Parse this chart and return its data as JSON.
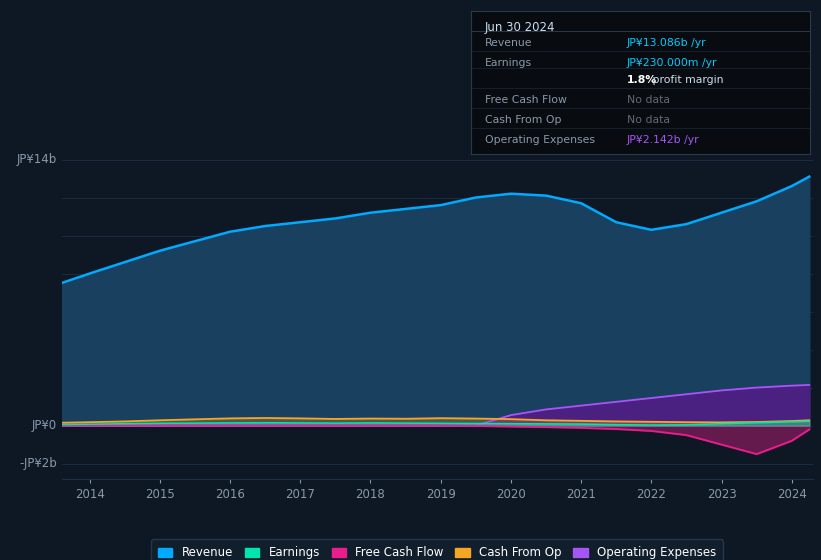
{
  "background_color": "#0e1825",
  "plot_bg_color": "#0e1825",
  "ylim": [
    -2800000000.0,
    16500000000.0
  ],
  "years": [
    2013.6,
    2014.0,
    2014.5,
    2015.0,
    2015.5,
    2016.0,
    2016.5,
    2017.0,
    2017.5,
    2018.0,
    2018.5,
    2019.0,
    2019.5,
    2020.0,
    2020.5,
    2021.0,
    2021.5,
    2022.0,
    2022.5,
    2023.0,
    2023.5,
    2024.0,
    2024.25
  ],
  "revenue": [
    7500000000.0,
    8000000000.0,
    8600000000.0,
    9200000000.0,
    9700000000.0,
    10200000000.0,
    10500000000.0,
    10700000000.0,
    10900000000.0,
    11200000000.0,
    11400000000.0,
    11600000000.0,
    12000000000.0,
    12200000000.0,
    12100000000.0,
    11700000000.0,
    10700000000.0,
    10300000000.0,
    10600000000.0,
    11200000000.0,
    11800000000.0,
    12600000000.0,
    13100000000.0
  ],
  "earnings": [
    50000000.0,
    70000000.0,
    100000000.0,
    120000000.0,
    130000000.0,
    140000000.0,
    150000000.0,
    140000000.0,
    130000000.0,
    140000000.0,
    130000000.0,
    120000000.0,
    110000000.0,
    100000000.0,
    90000000.0,
    80000000.0,
    50000000.0,
    30000000.0,
    40000000.0,
    100000000.0,
    150000000.0,
    200000000.0,
    230000000.0
  ],
  "free_cash_flow": [
    0.0,
    0.0,
    0.0,
    0.0,
    0.0,
    0.0,
    0.0,
    0.0,
    0.0,
    0.0,
    0.0,
    0.0,
    -20000000.0,
    -50000000.0,
    -80000000.0,
    -120000000.0,
    -180000000.0,
    -280000000.0,
    -500000000.0,
    -1000000000.0,
    -1500000000.0,
    -800000000.0,
    -200000000.0
  ],
  "cash_from_op": [
    150000000.0,
    180000000.0,
    220000000.0,
    280000000.0,
    330000000.0,
    380000000.0,
    400000000.0,
    380000000.0,
    350000000.0,
    370000000.0,
    360000000.0,
    390000000.0,
    370000000.0,
    340000000.0,
    280000000.0,
    250000000.0,
    220000000.0,
    200000000.0,
    180000000.0,
    170000000.0,
    190000000.0,
    240000000.0,
    280000000.0
  ],
  "op_expenses": [
    0.0,
    0.0,
    0.0,
    0.0,
    0.0,
    0.0,
    0.0,
    0.0,
    0.0,
    0.0,
    0.0,
    0.0,
    0.0,
    550000000.0,
    850000000.0,
    1050000000.0,
    1250000000.0,
    1450000000.0,
    1650000000.0,
    1850000000.0,
    2000000000.0,
    2100000000.0,
    2140000000.0
  ],
  "revenue_color": "#00aaff",
  "revenue_fill": "#1a4060",
  "earnings_color": "#00e5b0",
  "free_cash_flow_color": "#e91e8c",
  "cash_from_op_color": "#f5a623",
  "op_expenses_color": "#a855f7",
  "op_expenses_fill": "#4a2080",
  "grid_color": "#1e3048",
  "tick_label_color": "#8899aa",
  "xticks": [
    2014,
    2015,
    2016,
    2017,
    2018,
    2019,
    2020,
    2021,
    2022,
    2023,
    2024
  ],
  "legend_entries": [
    {
      "label": "Revenue",
      "color": "#00aaff"
    },
    {
      "label": "Earnings",
      "color": "#00e5b0"
    },
    {
      "label": "Free Cash Flow",
      "color": "#e91e8c"
    },
    {
      "label": "Cash From Op",
      "color": "#f5a623"
    },
    {
      "label": "Operating Expenses",
      "color": "#a855f7"
    }
  ],
  "infobox": {
    "title": "Jun 30 2024",
    "rows": [
      {
        "label": "Revenue",
        "value": "JP¥13.086b /yr",
        "value_color": "#00ccff"
      },
      {
        "label": "Earnings",
        "value": "JP¥230.000m /yr",
        "value_color": "#00ccff"
      },
      {
        "label": "",
        "value": "1.8% profit margin",
        "value_color": "#ffffff",
        "bold_prefix": "1.8%"
      },
      {
        "label": "Free Cash Flow",
        "value": "No data",
        "value_color": "#666677"
      },
      {
        "label": "Cash From Op",
        "value": "No data",
        "value_color": "#666677"
      },
      {
        "label": "Operating Expenses",
        "value": "JP¥2.142b /yr",
        "value_color": "#a855f7"
      }
    ]
  }
}
